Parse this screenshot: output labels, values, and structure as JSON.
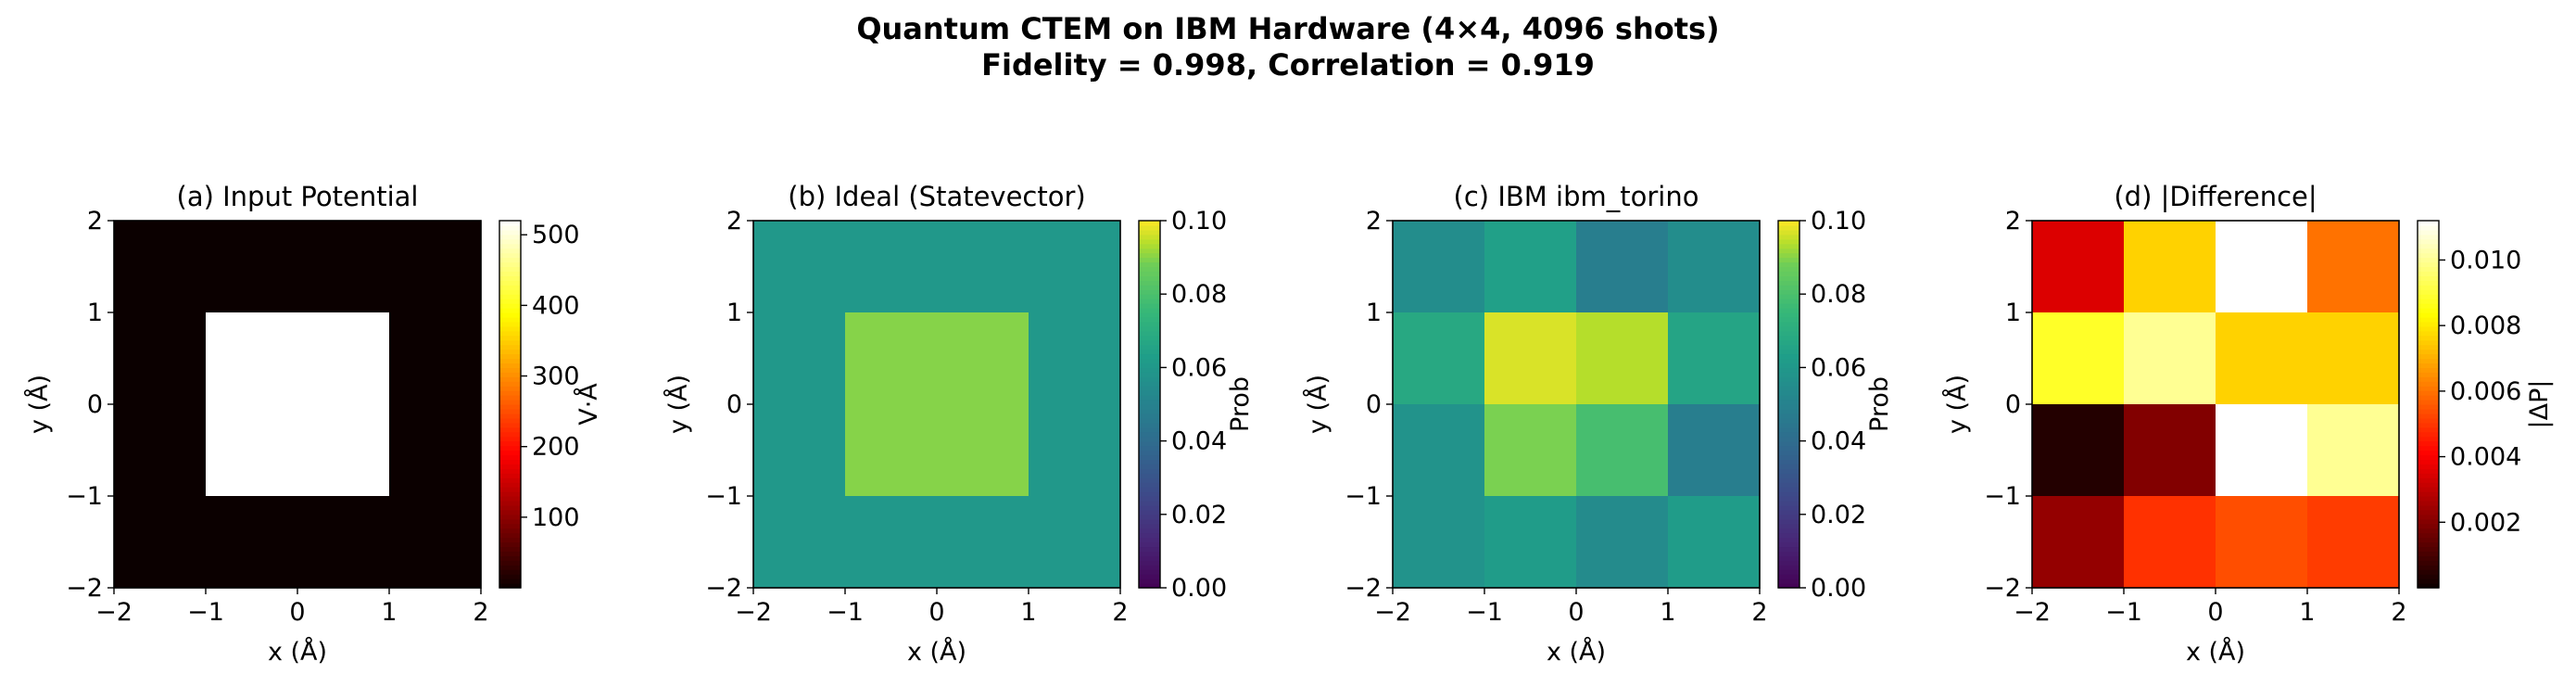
{
  "figure": {
    "title_line1": "Quantum CTEM on IBM Hardware (4×4, 4096 shots)",
    "title_line2": "Fidelity = 0.998, Correlation = 0.919"
  },
  "chart_data": [
    {
      "type": "heatmap",
      "title": "(a) Input Potential",
      "xlabel": "x (Å)",
      "ylabel": "y (Å)",
      "xlim": [
        -2,
        2
      ],
      "ylim": [
        -2,
        2
      ],
      "xticks": [
        "−2",
        "−1",
        "0",
        "1",
        "2"
      ],
      "yticks": [
        "−2",
        "−1",
        "0",
        "1",
        "2"
      ],
      "colormap": "hot",
      "colorbar": {
        "label": "V·Å",
        "range": [
          0,
          520
        ],
        "ticks": [
          100,
          200,
          300,
          400,
          500
        ]
      },
      "grid_rows_top_to_bottom": [
        [
          0,
          0,
          0,
          0
        ],
        [
          0,
          520,
          520,
          0
        ],
        [
          0,
          520,
          520,
          0
        ],
        [
          0,
          0,
          0,
          0
        ]
      ]
    },
    {
      "type": "heatmap",
      "title": "(b) Ideal (Statevector)",
      "xlabel": "x (Å)",
      "ylabel": "y (Å)",
      "xlim": [
        -2,
        2
      ],
      "ylim": [
        -2,
        2
      ],
      "xticks": [
        "−2",
        "−1",
        "0",
        "1",
        "2"
      ],
      "yticks": [
        "−2",
        "−1",
        "0",
        "1",
        "2"
      ],
      "colormap": "viridis",
      "colorbar": {
        "label": "Prob",
        "range": [
          0,
          0.1
        ],
        "ticks": [
          0.0,
          0.02,
          0.04,
          0.06,
          0.08,
          0.1
        ]
      },
      "grid_rows_top_to_bottom": [
        [
          0.06,
          0.06,
          0.06,
          0.06
        ],
        [
          0.06,
          0.09,
          0.09,
          0.06
        ],
        [
          0.06,
          0.09,
          0.09,
          0.06
        ],
        [
          0.06,
          0.06,
          0.06,
          0.06
        ]
      ]
    },
    {
      "type": "heatmap",
      "title": "(c) IBM ibm_torino",
      "xlabel": "x (Å)",
      "ylabel": "y (Å)",
      "xlim": [
        -2,
        2
      ],
      "ylim": [
        -2,
        2
      ],
      "xticks": [
        "−2",
        "−1",
        "0",
        "1",
        "2"
      ],
      "yticks": [
        "−2",
        "−1",
        "0",
        "1",
        "2"
      ],
      "colormap": "viridis",
      "colorbar": {
        "label": "Prob",
        "range": [
          0,
          0.1
        ],
        "ticks": [
          0.0,
          0.02,
          0.04,
          0.06,
          0.08,
          0.1
        ]
      },
      "grid_rows_top_to_bottom": [
        [
          0.055,
          0.064,
          0.048,
          0.055
        ],
        [
          0.068,
          0.097,
          0.094,
          0.066
        ],
        [
          0.058,
          0.089,
          0.079,
          0.048
        ],
        [
          0.058,
          0.062,
          0.054,
          0.062
        ]
      ]
    },
    {
      "type": "heatmap",
      "title": "(d) |Difference|",
      "xlabel": "x (Å)",
      "ylabel": "y (Å)",
      "xlim": [
        -2,
        2
      ],
      "ylim": [
        -2,
        2
      ],
      "xticks": [
        "−2",
        "−1",
        "0",
        "1",
        "2"
      ],
      "yticks": [
        "−2",
        "−1",
        "0",
        "1",
        "2"
      ],
      "colormap": "hot",
      "colorbar": {
        "label": "|ΔP|",
        "range": [
          0,
          0.0112
        ],
        "ticks": [
          0.002,
          0.004,
          0.006,
          0.008,
          0.01
        ]
      },
      "grid_rows_top_to_bottom": [
        [
          0.0035,
          0.0076,
          0.0112,
          0.006
        ],
        [
          0.0088,
          0.01,
          0.0076,
          0.0076
        ],
        [
          0.0004,
          0.002,
          0.0112,
          0.01
        ],
        [
          0.0023,
          0.0049,
          0.0054,
          0.0051
        ]
      ]
    }
  ]
}
